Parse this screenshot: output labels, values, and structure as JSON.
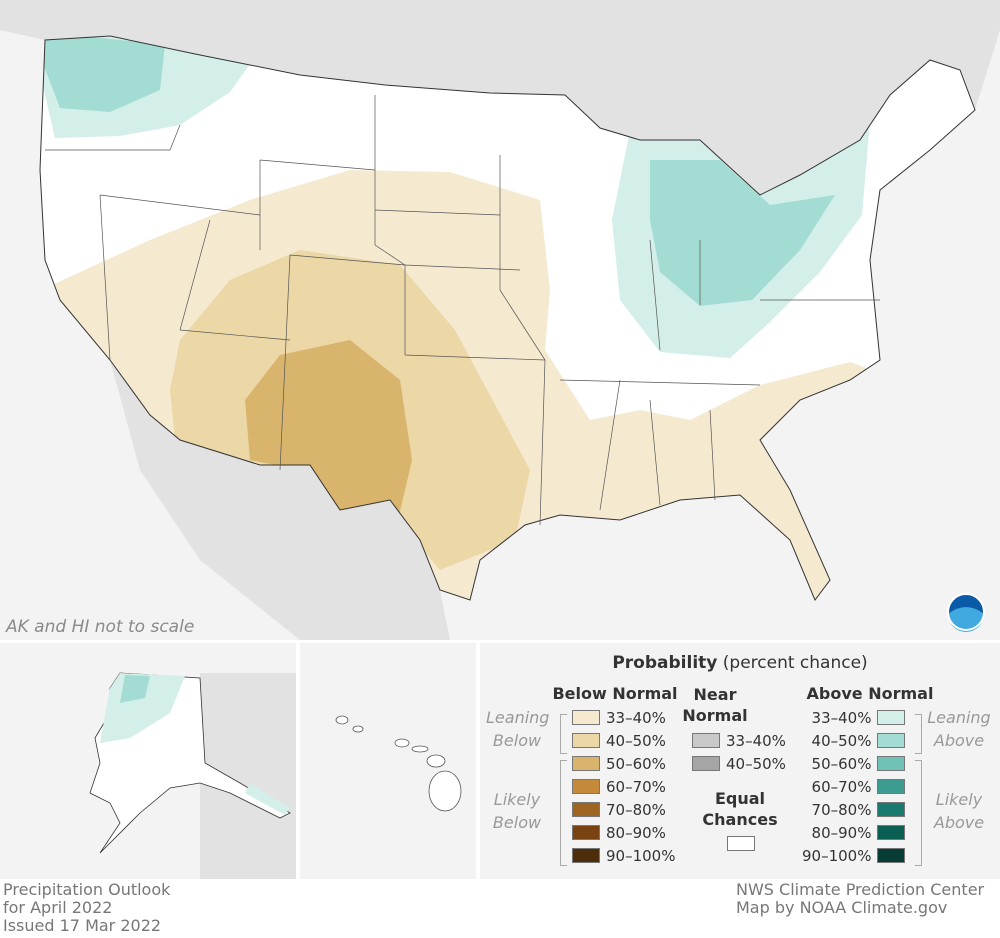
{
  "map": {
    "scale_note": "AK and HI not to scale",
    "logo": "NOAA"
  },
  "legend": {
    "title_bold": "Probability",
    "title_rest": "(percent chance)",
    "below": {
      "heading": "Below Normal",
      "leaning_label": "Leaning Below",
      "likely_label": "Likely Below",
      "items": [
        {
          "label": "33–40%",
          "color": "#f5ead0"
        },
        {
          "label": "40–50%",
          "color": "#ecd7a6"
        },
        {
          "label": "50–60%",
          "color": "#d9b46d"
        },
        {
          "label": "60–70%",
          "color": "#c48a3a"
        },
        {
          "label": "70–80%",
          "color": "#9e6520"
        },
        {
          "label": "80–90%",
          "color": "#784310"
        },
        {
          "label": "90–100%",
          "color": "#4e2d0b"
        }
      ]
    },
    "near": {
      "heading": "Near Normal",
      "items": [
        {
          "label": "33–40%",
          "color": "#c8c8c8"
        },
        {
          "label": "40–50%",
          "color": "#a5a5a5"
        }
      ],
      "equal_heading": "Equal Chances",
      "equal_color": "#ffffff"
    },
    "above": {
      "heading": "Above Normal",
      "leaning_label": "Leaning Above",
      "likely_label": "Likely Above",
      "items": [
        {
          "label": "33–40%",
          "color": "#d4eeea"
        },
        {
          "label": "40–50%",
          "color": "#a3dcd3"
        },
        {
          "label": "50–60%",
          "color": "#6fc2b5"
        },
        {
          "label": "60–70%",
          "color": "#3c9c91"
        },
        {
          "label": "70–80%",
          "color": "#1a7a70"
        },
        {
          "label": "80–90%",
          "color": "#0b5e52"
        },
        {
          "label": "90–100%",
          "color": "#083d35"
        }
      ]
    }
  },
  "footer": {
    "left": [
      "Precipitation Outlook",
      "for April 2022",
      "Issued 17 Mar 2022"
    ],
    "right": [
      "NWS Climate Prediction Center",
      "Map by NOAA Climate.gov"
    ]
  }
}
